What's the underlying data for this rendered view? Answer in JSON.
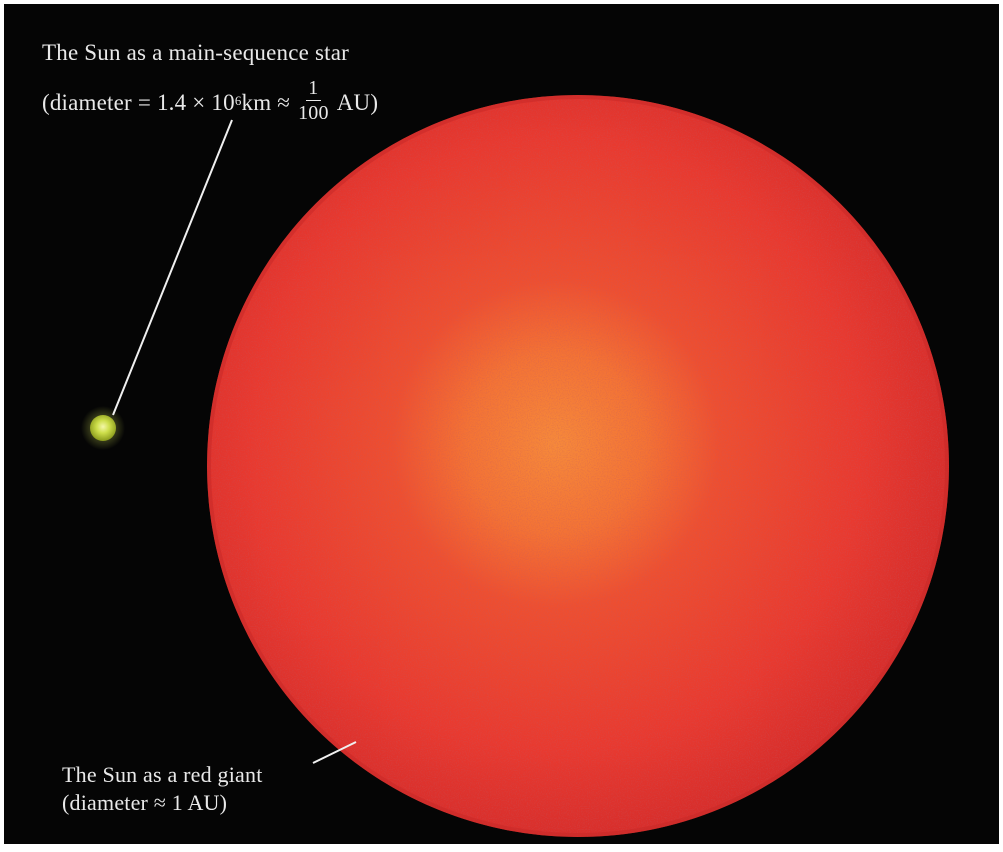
{
  "main_sequence": {
    "title": "The Sun as a main-sequence star",
    "diam_open": "(diameter = 1.4 × 10",
    "diam_exp": "6",
    "diam_mid": " km ≈",
    "frac_num": "1",
    "frac_den": "100",
    "diam_unit": "AU)"
  },
  "red_giant": {
    "title": "The Sun as a red giant",
    "diameter": "(diameter ≈ 1 AU)"
  },
  "colors": {
    "background": "#050505",
    "giant_core": "#f57a35",
    "giant_body": "#ec3a32",
    "giant_edge": "#d42d2a",
    "small_sun": "#c4d640",
    "leader_line": "#f0f0f0"
  }
}
